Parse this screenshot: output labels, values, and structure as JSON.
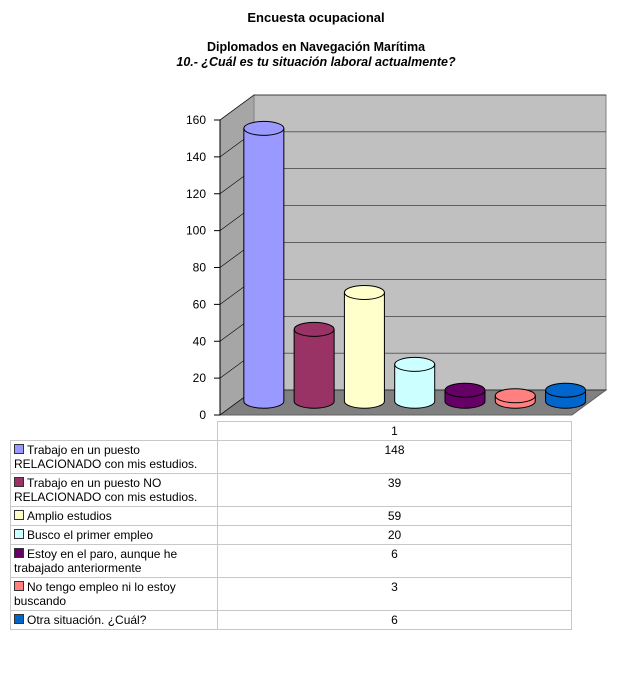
{
  "header": {
    "title": "Encuesta ocupacional",
    "subtitle": "Diplomados en Navegación Marítima",
    "question": "10.- ¿Cuál es tu situación laboral actualmente?"
  },
  "chart_data": {
    "type": "bar",
    "style": "3d-cylinder",
    "categories": [
      "1"
    ],
    "ylim": [
      0,
      160
    ],
    "yticks": [
      "0",
      "20",
      "40",
      "60",
      "80",
      "100",
      "120",
      "140",
      "160"
    ],
    "grid": true,
    "series": [
      {
        "name": "Trabajo en un puesto RELACIONADO con mis estudios.",
        "values": [
          148
        ],
        "color": "#9999ff"
      },
      {
        "name": "Trabajo en un puesto NO RELACIONADO con mis estudios.",
        "values": [
          39
        ],
        "color": "#993366"
      },
      {
        "name": "Amplio estudios",
        "values": [
          59
        ],
        "color": "#ffffcc"
      },
      {
        "name": "Busco el primer empleo",
        "values": [
          20
        ],
        "color": "#ccffff"
      },
      {
        "name": "Estoy en el paro, aunque he trabajado anteriormente",
        "values": [
          6
        ],
        "color": "#660066"
      },
      {
        "name": "No tengo empleo ni lo estoy buscando",
        "values": [
          3
        ],
        "color": "#ff8080"
      },
      {
        "name": "Otra situación. ¿Cuál?",
        "values": [
          6
        ],
        "color": "#0066cc"
      }
    ]
  },
  "table": {
    "header_value": "1",
    "rows": [
      {
        "label": "Trabajo en un puesto RELACIONADO con mis estudios.",
        "value": "148"
      },
      {
        "label": "Trabajo en un puesto NO RELACIONADO con mis estudios.",
        "value": "39"
      },
      {
        "label": "Amplio estudios",
        "value": "59"
      },
      {
        "label": "Busco el primer empleo",
        "value": "20"
      },
      {
        "label": "Estoy en el paro, aunque he trabajado anteriormente",
        "value": "6"
      },
      {
        "label": "No tengo empleo ni lo estoy buscando",
        "value": "3"
      },
      {
        "label": "Otra situación. ¿Cuál?",
        "value": "6"
      }
    ]
  }
}
